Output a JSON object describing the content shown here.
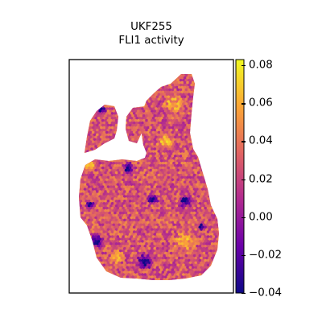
{
  "chart_data": {
    "type": "scatter",
    "title": "UKF255",
    "subtitle": "FLI1 activity",
    "colormap": "plasma",
    "colormap_stops": [
      "#0d0887",
      "#6a00a8",
      "#b12a90",
      "#e16462",
      "#fca636",
      "#f0f921"
    ],
    "color_range": [
      -0.04,
      0.083
    ],
    "colorbar_ticks": [
      "−0.04",
      "−0.02",
      "0.00",
      "0.02",
      "0.04",
      "0.06",
      "0.08"
    ],
    "colorbar_tick_values": [
      -0.04,
      -0.02,
      0.0,
      0.02,
      0.04,
      0.06,
      0.08
    ],
    "axes_visible": false,
    "spot_shape": "hexagon",
    "value_distribution": "mostly 0.02–0.06, with scattered low-activity (−0.04 to 0.00) regions on tissue edges and center"
  }
}
